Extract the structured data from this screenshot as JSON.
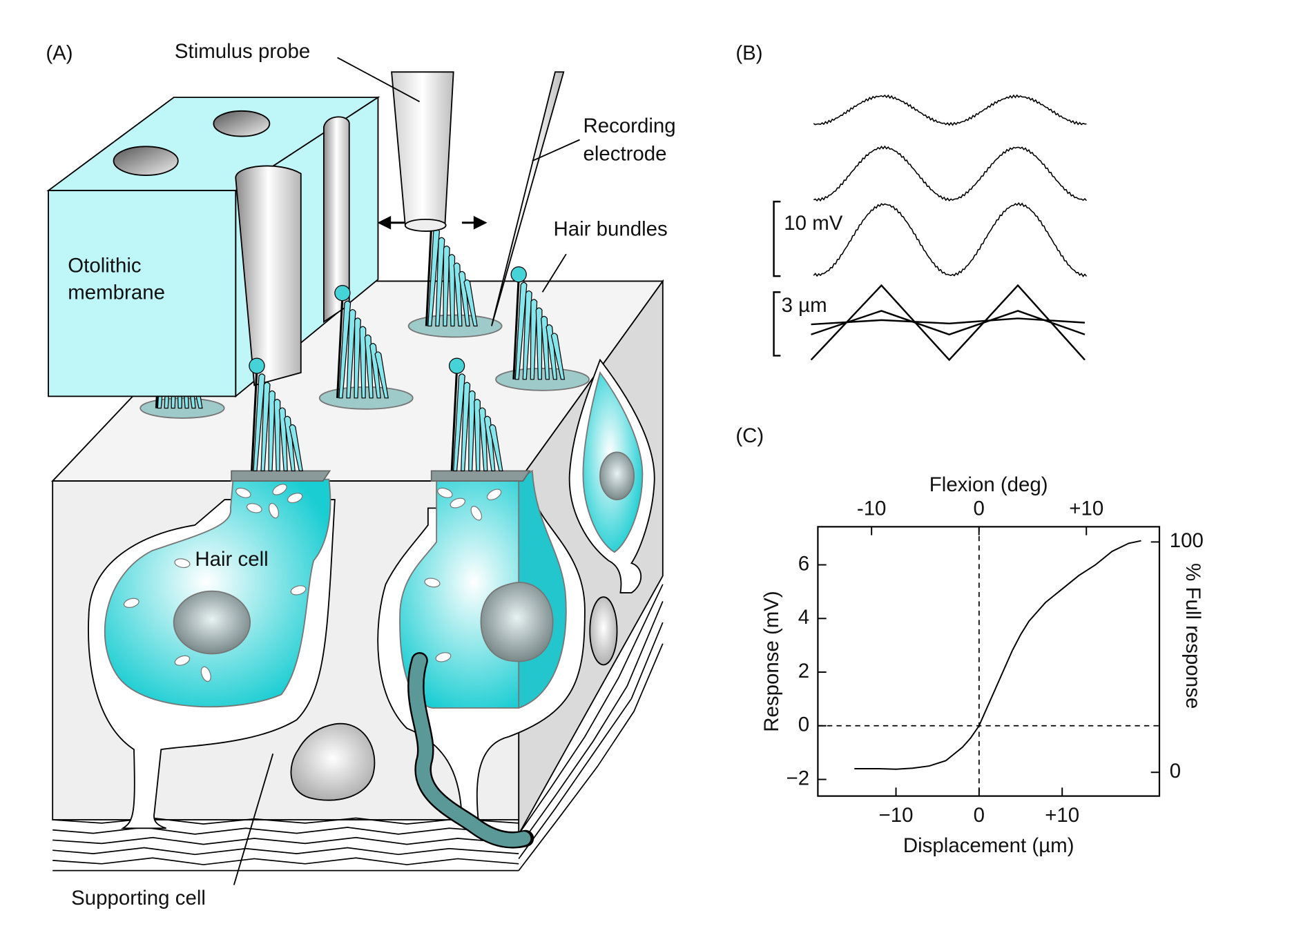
{
  "panel_a": {
    "label": "(A)",
    "stimulus_probe": "Stimulus probe",
    "recording_electrode": [
      "Recording",
      "electrode"
    ],
    "hair_bundles": "Hair bundles",
    "otolithic_membrane": [
      "Otolithic",
      "membrane"
    ],
    "hair_cell": "Hair cell",
    "supporting_cell": "Supporting cell"
  },
  "panel_b": {
    "label": "(B)",
    "voltage_scale": "10 mV",
    "displacement_scale": "3 µm"
  },
  "panel_c": {
    "label": "(C)"
  },
  "chart_data": {
    "type": "line",
    "x_label": "Displacement (µm)",
    "y_label": "Response (mV)",
    "x2_label": "Flexion (deg)",
    "y2_label": "% Full response",
    "x": [
      -15,
      -12,
      -10,
      -8,
      -6,
      -4,
      -2,
      -1,
      0,
      1,
      2,
      3,
      4,
      5,
      6,
      8,
      10,
      12,
      14,
      16,
      18,
      19.5
    ],
    "series": [
      {
        "color": "#000000",
        "values": [
          -1.6,
          -1.6,
          -1.62,
          -1.58,
          -1.5,
          -1.3,
          -0.8,
          -0.45,
          0,
          0.7,
          1.4,
          2.1,
          2.8,
          3.4,
          3.9,
          4.6,
          5.1,
          5.6,
          6.0,
          6.5,
          6.8,
          6.9
        ]
      }
    ],
    "xlim": [
      -19.4,
      21.7
    ],
    "xticks": [
      {
        "value": -10,
        "label": "−10"
      },
      0,
      {
        "value": 10,
        "label": "+10"
      }
    ],
    "ylim": [
      -2.62,
      7.42
    ],
    "yticks": [
      {
        "value": -2,
        "label": "−2"
      },
      0,
      2,
      4,
      6
    ],
    "x2lim": [
      -15.0,
      16.8
    ],
    "x2ticks": [
      {
        "value": -10,
        "label": "-10"
      },
      0,
      {
        "value": 10,
        "label": "+10"
      }
    ],
    "y2lim": [
      -10.3,
      106.6
    ],
    "y2ticks": [
      0,
      100
    ],
    "zero_lines": true,
    "grid": false
  }
}
